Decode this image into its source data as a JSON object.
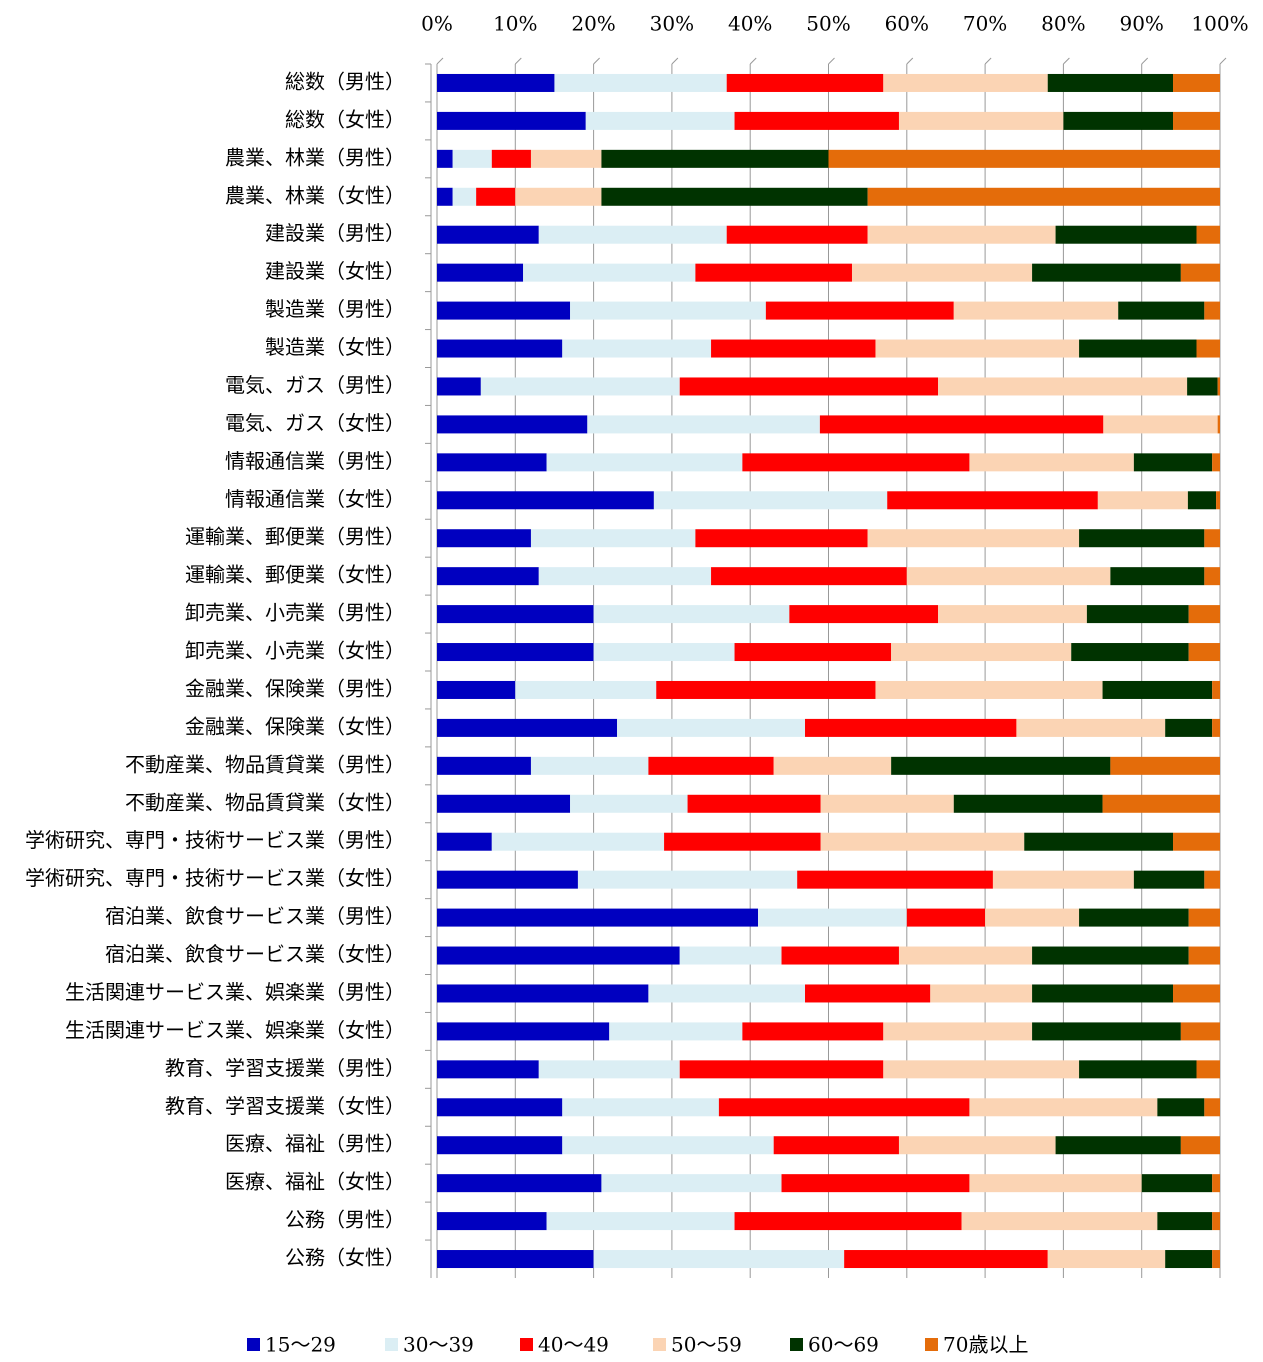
{
  "chart_data": {
    "type": "stacked-bar-horizontal",
    "categories": [
      "総数（男性）",
      "総数（女性）",
      "農業、林業（男性）",
      "農業、林業（女性）",
      "建設業（男性）",
      "建設業（女性）",
      "製造業（男性）",
      "製造業（女性）",
      "電気、ガス（男性）",
      "電気、ガス（女性）",
      "情報通信業（男性）",
      "情報通信業（女性）",
      "運輸業、郵便業（男性）",
      "運輸業、郵便業（女性）",
      "卸売業、小売業（男性）",
      "卸売業、小売業（女性）",
      "金融業、保険業（男性）",
      "金融業、保険業（女性）",
      "不動産業、物品賃貸業（男性）",
      "不動産業、物品賃貸業（女性）",
      "学術研究、専門・技術サービス業（男性）",
      "学術研究、専門・技術サービス業（女性）",
      "宿泊業、飲食サービス業（男性）",
      "宿泊業、飲食サービス業（女性）",
      "生活関連サービス業、娯楽業（男性）",
      "生活関連サービス業、娯楽業（女性）",
      "教育、学習支援業（男性）",
      "教育、学習支援業（女性）",
      "医療、福祉（男性）",
      "医療、福祉（女性）",
      "公務（男性）",
      "公務（女性）"
    ],
    "series": [
      {
        "name": "15～29",
        "color": "#0000c0",
        "values": [
          15,
          19,
          2,
          2,
          13,
          11,
          17,
          16,
          5.6,
          19.2,
          14,
          27.7,
          12,
          13,
          20,
          20,
          10,
          23,
          12,
          17,
          7,
          18,
          41,
          31,
          27,
          22,
          13,
          16,
          16,
          21,
          14,
          20
        ]
      },
      {
        "name": "30～39",
        "color": "#dbeef4",
        "values": [
          22,
          19,
          5,
          3,
          24,
          22,
          25,
          19,
          25.4,
          29.7,
          25,
          29.8,
          21,
          22,
          25,
          18,
          18,
          24,
          15,
          15,
          22,
          28,
          19,
          13,
          20,
          17,
          18,
          20,
          27,
          23,
          24,
          32
        ]
      },
      {
        "name": "40～49",
        "color": "#ff0000",
        "values": [
          20,
          21,
          5,
          5,
          18,
          20,
          24,
          21,
          33,
          36.2,
          29,
          26.9,
          22,
          25,
          19,
          20,
          28,
          27,
          16,
          17,
          20,
          25,
          10,
          15,
          16,
          18,
          26,
          32,
          16,
          24,
          29,
          26
        ]
      },
      {
        "name": "50～59",
        "color": "#fbd4b4",
        "values": [
          21,
          21,
          9,
          11,
          24,
          23,
          21,
          26,
          31.8,
          14.6,
          21,
          11.5,
          27,
          26,
          19,
          23,
          29,
          19,
          15,
          17,
          26,
          18,
          12,
          17,
          13,
          19,
          25,
          24,
          20,
          22,
          25,
          15
        ]
      },
      {
        "name": "60～69",
        "color": "#003300",
        "values": [
          16,
          14,
          29,
          34,
          18,
          19,
          11,
          15,
          3.9,
          0,
          10,
          3.6,
          16,
          12,
          13,
          15,
          14,
          6,
          28,
          19,
          19,
          9,
          14,
          20,
          18,
          19,
          15,
          6,
          16,
          9,
          7,
          6
        ]
      },
      {
        "name": "70歳以上",
        "color": "#e46c0a",
        "values": [
          6,
          6,
          50,
          45,
          3,
          5,
          2,
          3,
          0.3,
          0.3,
          1,
          0.5,
          2,
          2,
          4,
          4,
          1,
          1,
          14,
          15,
          6,
          2,
          4,
          4,
          6,
          5,
          3,
          2,
          5,
          1,
          1,
          1
        ]
      }
    ],
    "xlim": [
      0,
      100
    ],
    "xticks": [
      {
        "value": 0,
        "label": "0%"
      },
      {
        "value": 10,
        "label": "10%"
      },
      {
        "value": 20,
        "label": "20%"
      },
      {
        "value": 30,
        "label": "30%"
      },
      {
        "value": 40,
        "label": "40%"
      },
      {
        "value": 50,
        "label": "50%"
      },
      {
        "value": 60,
        "label": "60%"
      },
      {
        "value": 70,
        "label": "70%"
      },
      {
        "value": 80,
        "label": "80%"
      },
      {
        "value": 90,
        "label": "90%"
      },
      {
        "value": 100,
        "label": "100%"
      }
    ],
    "grid": true,
    "legend": "bottom"
  }
}
